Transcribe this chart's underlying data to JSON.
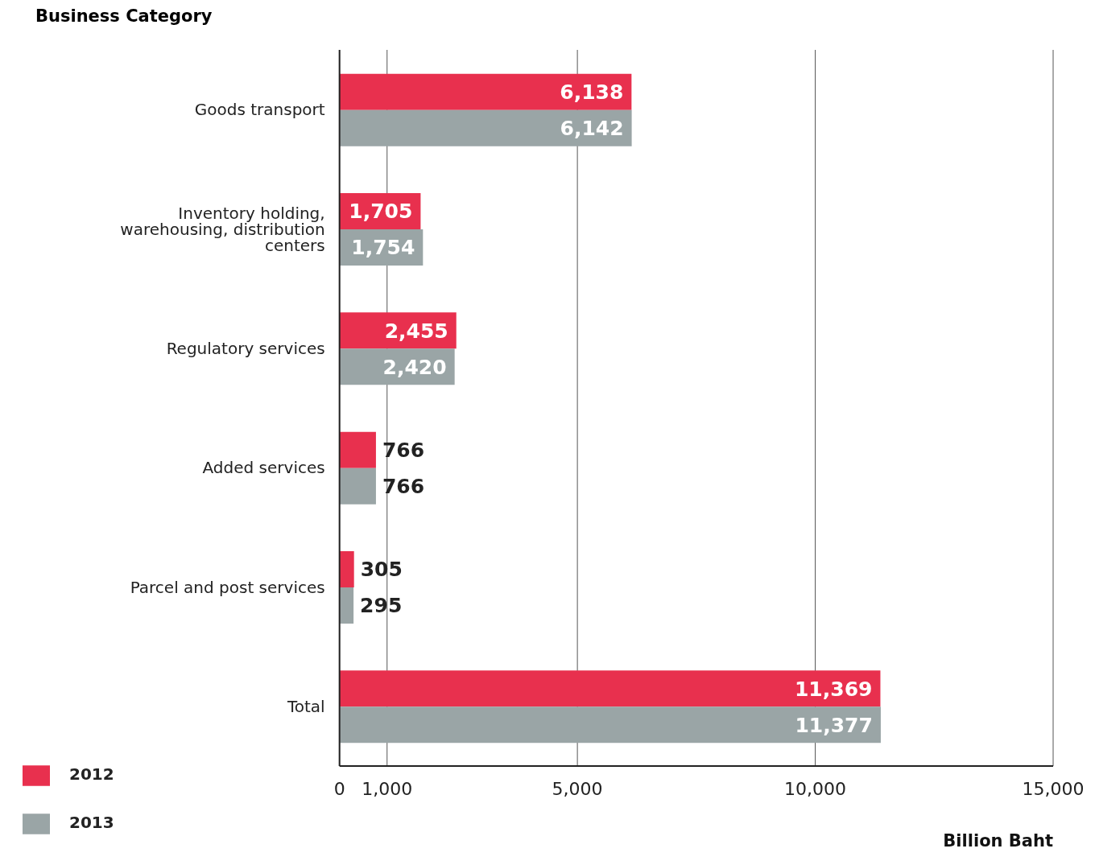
{
  "chart_data": {
    "type": "bar",
    "orientation": "horizontal",
    "title": "Business Category",
    "xlabel": "Billion Baht",
    "categories": [
      "Goods transport",
      "Inventory holding, warehousing, distribution centers",
      "Regulatory services",
      "Added services",
      "Parcel and post services",
      "Total"
    ],
    "series": [
      {
        "name": "2012",
        "color": "#e8304e",
        "values": [
          6138,
          1705,
          2455,
          766,
          305,
          11369
        ],
        "value_labels": [
          "6,138",
          "1,705",
          "2,455",
          "766",
          "305",
          "11,369"
        ]
      },
      {
        "name": "2013",
        "color": "#9aa5a6",
        "values": [
          6142,
          1754,
          2420,
          766,
          295,
          11377
        ],
        "value_labels": [
          "6,142",
          "1,754",
          "2,420",
          "766",
          "295",
          "11,377"
        ]
      }
    ],
    "xlim": [
      0,
      15000
    ],
    "xticks": [
      0,
      {
        "value": 1000,
        "label": "1,000"
      },
      {
        "value": 5000,
        "label": "5,000"
      },
      {
        "value": 10000,
        "label": "10,000"
      },
      {
        "value": 15000,
        "label": "15,000"
      }
    ],
    "grid": "x",
    "legend": "bottom left"
  }
}
